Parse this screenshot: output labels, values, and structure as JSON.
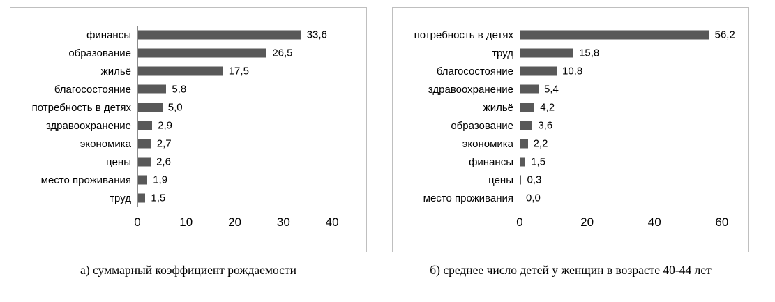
{
  "chart_data": [
    {
      "type": "bar",
      "orientation": "horizontal",
      "caption": "а) суммарный коэффициент рождаемости",
      "categories": [
        "финансы",
        "образование",
        "жильё",
        "благосостояние",
        "потребность в детях",
        "здравоохранение",
        "экономика",
        "цены",
        "место проживания",
        "труд"
      ],
      "values": [
        33.6,
        26.5,
        17.5,
        5.8,
        5.0,
        2.9,
        2.7,
        2.6,
        1.9,
        1.5
      ],
      "value_labels": [
        "33,6",
        "26,5",
        "17,5",
        "5,8",
        "5,0",
        "2,9",
        "2,7",
        "2,6",
        "1,9",
        "1,5"
      ],
      "xticks": [
        0,
        10,
        20,
        30,
        40
      ],
      "xlim": [
        0,
        45
      ],
      "bar_color": "#595959",
      "grid": false,
      "legend": false
    },
    {
      "type": "bar",
      "orientation": "horizontal",
      "caption": "б) среднее число детей у женщин в возрасте 40-44 лет",
      "categories": [
        "потребность в детях",
        "труд",
        "благосостояние",
        "здравоохранение",
        "жильё",
        "образование",
        "экономика",
        "финансы",
        "цены",
        "место проживания"
      ],
      "values": [
        56.2,
        15.8,
        10.8,
        5.4,
        4.2,
        3.6,
        2.2,
        1.5,
        0.3,
        0.0
      ],
      "value_labels": [
        "56,2",
        "15,8",
        "10,8",
        "5,4",
        "4,2",
        "3,6",
        "2,2",
        "1,5",
        "0,3",
        "0,0"
      ],
      "xticks": [
        0,
        20,
        40,
        60
      ],
      "xlim": [
        0,
        65
      ],
      "bar_color": "#595959",
      "grid": false,
      "legend": false
    }
  ]
}
